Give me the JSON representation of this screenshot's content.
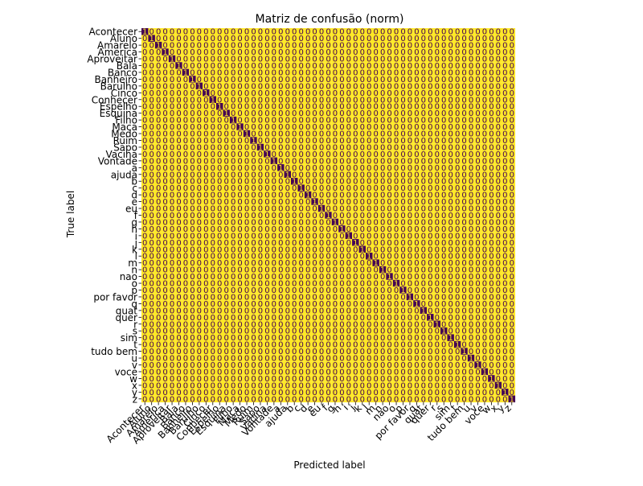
{
  "chart_data": {
    "type": "heatmap",
    "title": "Matriz de confusão (norm)",
    "xlabel": "Predicted label",
    "ylabel": "True label",
    "labels": [
      "Acontecer",
      "Aluno",
      "Amarelo",
      "America",
      "Aproveitar",
      "Bala",
      "Banco",
      "Banheiro",
      "Barulho",
      "Cinco",
      "Conhecer",
      "Espelho",
      "Esquina",
      "Filho",
      "Maca",
      "Medo",
      "Ruim",
      "Sapo",
      "Vacina",
      "Vontade",
      "a",
      "ajuda",
      "b",
      "c",
      "d",
      "e",
      "eu",
      "f",
      "g",
      "h",
      "i",
      "j",
      "k",
      "l",
      "m",
      "n",
      "nao",
      "o",
      "p",
      "por favor",
      "q",
      "quat",
      "quer",
      "r",
      "s",
      "sim",
      "t",
      "tudo bem",
      "u",
      "v",
      "voce",
      "w",
      "x",
      "y",
      "z"
    ],
    "diagonal_value": 1.0,
    "off_diagonal_value": 0.0,
    "colormap": "viridis",
    "colors": {
      "low": "#fde725",
      "high": "#440154"
    },
    "grid": false,
    "legend": "none"
  }
}
